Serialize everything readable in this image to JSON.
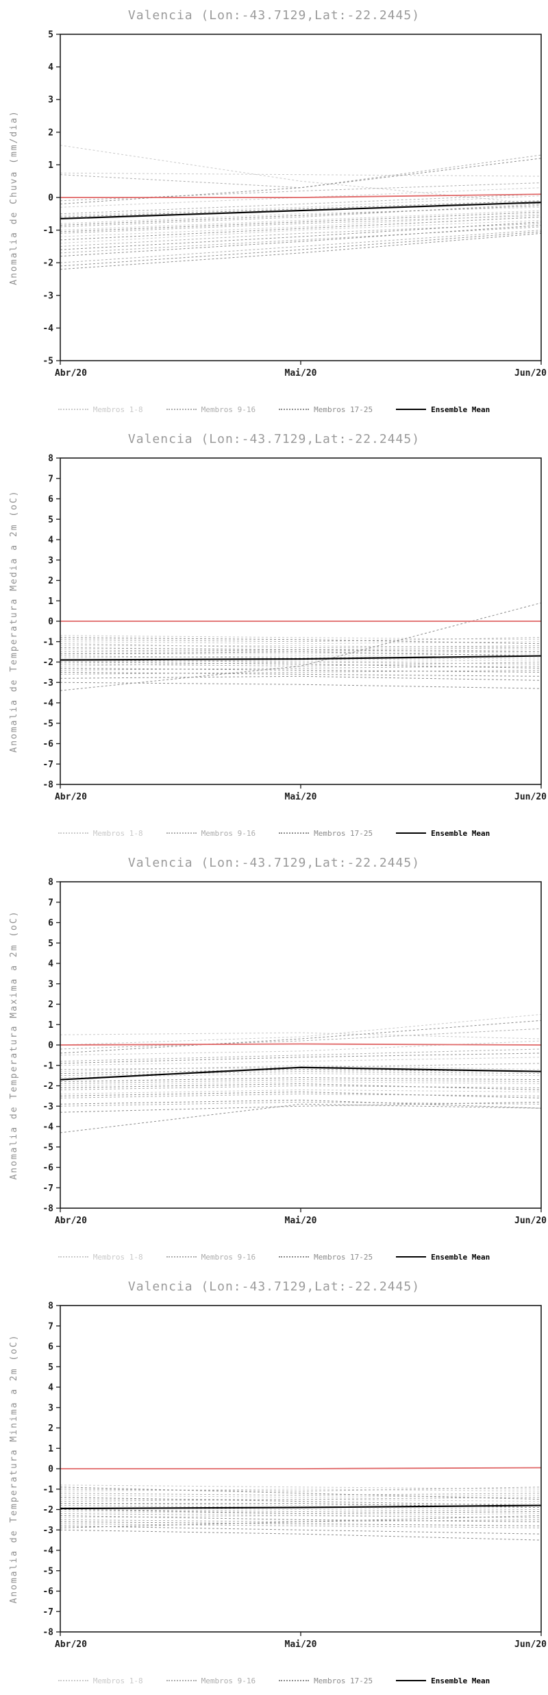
{
  "page": {
    "background": "#ffffff"
  },
  "chart_data": [
    {
      "type": "line",
      "title": "Valencia (Lon:-43.7129,Lat:-22.2445)",
      "ylabel": "Anomalia de Chuva (mm/dia)",
      "xlabel": "",
      "x_categories": [
        "Abr/20",
        "Mai/20",
        "Jun/20"
      ],
      "ylim": [
        -5,
        5
      ],
      "ytick_step": 1,
      "grid": false,
      "legend_position": "bottom",
      "reference": {
        "color": "#e06666",
        "values": [
          0,
          0,
          0.1
        ]
      },
      "ensemble_mean": {
        "label": "Ensemble Mean",
        "color": "#000000",
        "values": [
          -0.65,
          -0.4,
          -0.15
        ]
      },
      "groups": [
        {
          "name": "Membros 1-8",
          "color": "#c9c9c9",
          "members": [
            [
              1.6,
              0.5,
              -0.2
            ],
            [
              0.75,
              0.7,
              0.65
            ],
            [
              -0.3,
              0.0,
              0.3
            ],
            [
              -0.55,
              -0.3,
              0.05
            ],
            [
              -0.8,
              -0.5,
              -0.3
            ],
            [
              -1.0,
              -0.7,
              -0.4
            ],
            [
              -1.2,
              -0.9,
              -0.5
            ],
            [
              -1.4,
              -1.0,
              -0.7
            ]
          ]
        },
        {
          "name": "Membros 9-16",
          "color": "#ababab",
          "members": [
            [
              0.7,
              0.3,
              1.3
            ],
            [
              -0.1,
              0.2,
              0.45
            ],
            [
              -0.5,
              -0.2,
              0.1
            ],
            [
              -0.9,
              -0.6,
              -0.2
            ],
            [
              -1.1,
              -0.8,
              -0.55
            ],
            [
              -1.5,
              -1.1,
              -0.8
            ],
            [
              -1.7,
              -1.3,
              -0.9
            ],
            [
              -2.0,
              -1.5,
              -1.0
            ]
          ]
        },
        {
          "name": "Membros 17-25",
          "color": "#8a8a8a",
          "members": [
            [
              -0.2,
              0.3,
              1.2
            ],
            [
              -0.6,
              -0.35,
              -0.1
            ],
            [
              -0.85,
              -0.55,
              -0.25
            ],
            [
              -1.05,
              -0.75,
              -0.45
            ],
            [
              -1.3,
              -0.95,
              -0.6
            ],
            [
              -1.6,
              -1.2,
              -0.75
            ],
            [
              -1.8,
              -1.35,
              -0.85
            ],
            [
              -2.1,
              -1.6,
              -1.05
            ],
            [
              -2.2,
              -1.7,
              -1.1
            ]
          ]
        }
      ]
    },
    {
      "type": "line",
      "title": "Valencia (Lon:-43.7129,Lat:-22.2445)",
      "ylabel": "Anomalia de Temperatura Media a 2m (oC)",
      "xlabel": "",
      "x_categories": [
        "Abr/20",
        "Mai/20",
        "Jun/20"
      ],
      "ylim": [
        -8,
        8
      ],
      "ytick_step": 1,
      "grid": false,
      "legend_position": "bottom",
      "reference": {
        "color": "#e06666",
        "values": [
          0,
          0,
          0
        ]
      },
      "ensemble_mean": {
        "label": "Ensemble Mean",
        "color": "#000000",
        "values": [
          -1.9,
          -1.85,
          -1.7
        ]
      },
      "groups": [
        {
          "name": "Membros 1-8",
          "color": "#c9c9c9",
          "members": [
            [
              -0.7,
              -0.8,
              -0.9
            ],
            [
              -1.0,
              -1.1,
              -1.0
            ],
            [
              -1.2,
              -1.2,
              -1.3
            ],
            [
              -1.4,
              -1.5,
              -1.4
            ],
            [
              -1.6,
              -1.6,
              -1.5
            ],
            [
              -1.8,
              -1.7,
              -1.6
            ],
            [
              -2.0,
              -1.9,
              -1.8
            ],
            [
              -2.2,
              -2.0,
              -1.9
            ]
          ]
        },
        {
          "name": "Membros 9-16",
          "color": "#ababab",
          "members": [
            [
              -0.9,
              -1.0,
              -0.8
            ],
            [
              -1.1,
              -1.3,
              -1.2
            ],
            [
              -1.5,
              -1.4,
              -1.3
            ],
            [
              -1.7,
              -1.8,
              -1.7
            ],
            [
              -1.9,
              -2.0,
              -2.1
            ],
            [
              -2.1,
              -2.2,
              -2.0
            ],
            [
              -2.4,
              -2.3,
              -2.2
            ],
            [
              -2.6,
              -2.5,
              -2.4
            ]
          ]
        },
        {
          "name": "Membros 17-25",
          "color": "#8a8a8a",
          "members": [
            [
              -3.4,
              -2.2,
              0.9
            ],
            [
              -0.8,
              -0.9,
              -1.1
            ],
            [
              -1.3,
              -1.4,
              -1.5
            ],
            [
              -1.6,
              -1.5,
              -1.7
            ],
            [
              -2.0,
              -2.1,
              -2.3
            ],
            [
              -2.3,
              -2.4,
              -2.5
            ],
            [
              -2.5,
              -2.6,
              -2.7
            ],
            [
              -2.8,
              -2.7,
              -2.9
            ],
            [
              -3.0,
              -3.1,
              -3.3
            ]
          ]
        }
      ]
    },
    {
      "type": "line",
      "title": "Valencia (Lon:-43.7129,Lat:-22.2445)",
      "ylabel": "Anomalia de Temperatura Maxima a 2m (oC)",
      "xlabel": "",
      "x_categories": [
        "Abr/20",
        "Mai/20",
        "Jun/20"
      ],
      "ylim": [
        -8,
        8
      ],
      "ytick_step": 1,
      "grid": false,
      "legend_position": "bottom",
      "reference": {
        "color": "#e06666",
        "values": [
          0,
          0.05,
          0
        ]
      },
      "ensemble_mean": {
        "label": "Ensemble Mean",
        "color": "#000000",
        "values": [
          -1.7,
          -1.1,
          -1.3
        ]
      },
      "groups": [
        {
          "name": "Membros 1-8",
          "color": "#c9c9c9",
          "members": [
            [
              0.5,
              0.6,
              0.3
            ],
            [
              0.0,
              0.4,
              1.5
            ],
            [
              -0.5,
              -0.3,
              0.2
            ],
            [
              -1.0,
              -0.8,
              -0.6
            ],
            [
              -1.3,
              -1.0,
              -1.2
            ],
            [
              -1.6,
              -1.4,
              -1.5
            ],
            [
              -2.0,
              -1.8,
              -1.9
            ],
            [
              -2.4,
              -2.2,
              -2.3
            ]
          ]
        },
        {
          "name": "Membros 9-16",
          "color": "#ababab",
          "members": [
            [
              -0.2,
              0.2,
              0.8
            ],
            [
              -0.8,
              -0.5,
              -0.2
            ],
            [
              -1.2,
              -1.1,
              -0.9
            ],
            [
              -1.5,
              -1.3,
              -1.4
            ],
            [
              -1.9,
              -1.7,
              -1.8
            ],
            [
              -2.2,
              -2.0,
              -2.1
            ],
            [
              -2.6,
              -2.4,
              -2.5
            ],
            [
              -3.0,
              -2.8,
              -2.9
            ]
          ]
        },
        {
          "name": "Membros 17-25",
          "color": "#8a8a8a",
          "members": [
            [
              -4.3,
              -2.9,
              -3.1
            ],
            [
              -0.4,
              0.3,
              1.2
            ],
            [
              -0.9,
              -0.6,
              -0.4
            ],
            [
              -1.4,
              -1.2,
              -1.3
            ],
            [
              -1.8,
              -1.6,
              -1.7
            ],
            [
              -2.1,
              -1.9,
              -2.2
            ],
            [
              -2.5,
              -2.3,
              -2.6
            ],
            [
              -2.9,
              -2.7,
              -3.1
            ],
            [
              -3.3,
              -3.0,
              -2.8
            ]
          ]
        }
      ]
    },
    {
      "type": "line",
      "title": "Valencia (Lon:-43.7129,Lat:-22.2445)",
      "ylabel": "Anomalia de Temperatura Minima a 2m (oC)",
      "xlabel": "",
      "x_categories": [
        "Abr/20",
        "Mai/20",
        "Jun/20"
      ],
      "ylim": [
        -8,
        8
      ],
      "ytick_step": 1,
      "grid": false,
      "legend_position": "bottom",
      "reference": {
        "color": "#e06666",
        "values": [
          0,
          0,
          0.05
        ]
      },
      "ensemble_mean": {
        "label": "Ensemble Mean",
        "color": "#000000",
        "values": [
          -1.95,
          -1.9,
          -1.8
        ]
      },
      "groups": [
        {
          "name": "Membros 1-8",
          "color": "#c9c9c9",
          "members": [
            [
              -0.8,
              -0.9,
              -1.0
            ],
            [
              -1.1,
              -1.0,
              -1.1
            ],
            [
              -1.3,
              -1.4,
              -1.3
            ],
            [
              -1.5,
              -1.5,
              -1.6
            ],
            [
              -1.7,
              -1.8,
              -1.7
            ],
            [
              -1.9,
              -2.0,
              -1.9
            ],
            [
              -2.1,
              -2.2,
              -2.1
            ],
            [
              -2.4,
              -2.3,
              -2.2
            ]
          ]
        },
        {
          "name": "Membros 9-16",
          "color": "#ababab",
          "members": [
            [
              -1.0,
              -1.1,
              -0.9
            ],
            [
              -1.2,
              -1.3,
              -1.2
            ],
            [
              -1.6,
              -1.5,
              -1.4
            ],
            [
              -1.8,
              -1.9,
              -1.8
            ],
            [
              -2.0,
              -2.1,
              -2.0
            ],
            [
              -2.2,
              -2.3,
              -2.4
            ],
            [
              -2.5,
              -2.6,
              -2.5
            ],
            [
              -2.7,
              -2.8,
              -2.9
            ]
          ]
        },
        {
          "name": "Membros 17-25",
          "color": "#8a8a8a",
          "members": [
            [
              -0.9,
              -1.2,
              -1.5
            ],
            [
              -1.4,
              -1.6,
              -1.8
            ],
            [
              -1.7,
              -1.7,
              -1.9
            ],
            [
              -2.0,
              -2.2,
              -2.1
            ],
            [
              -2.3,
              -2.5,
              -2.6
            ],
            [
              -2.6,
              -2.7,
              -2.8
            ],
            [
              -2.8,
              -3.0,
              -3.2
            ],
            [
              -3.0,
              -3.2,
              -3.5
            ],
            [
              -2.9,
              -2.6,
              -2.3
            ]
          ]
        }
      ]
    }
  ]
}
